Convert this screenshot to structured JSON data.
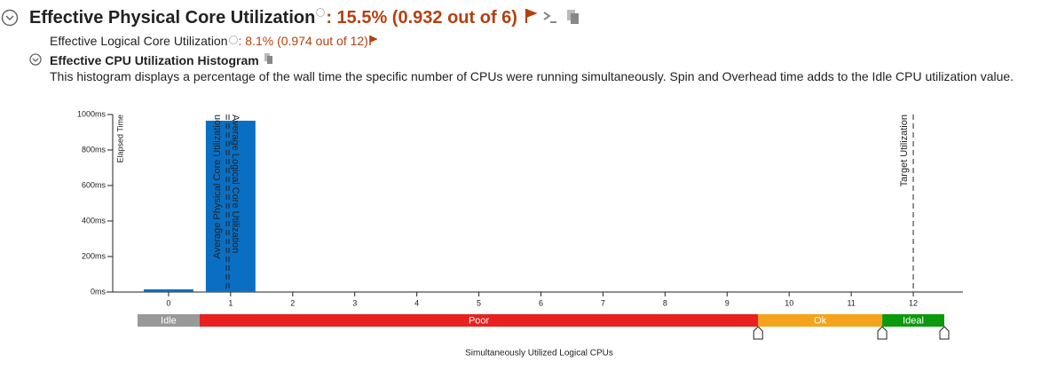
{
  "header": {
    "title": "Effective Physical Core Utilization",
    "title_value": ": 15.5% (0.932 out of 6)",
    "sub_label": "Effective Logical Core Utilization",
    "sub_value": ": 8.1% (0.974 out of 12)",
    "section_title": "Effective CPU Utilization Histogram",
    "description": "This histogram displays a percentage of the wall time the specific number of CPUs were running simultaneously. Spin and Overhead time adds to the Idle CPU utilization value."
  },
  "chart_data": {
    "type": "bar",
    "x_label": "Simultaneously Utilized Logical CPUs",
    "y_label": "Elapsed Time",
    "x": [
      0,
      1,
      2,
      3,
      4,
      5,
      6,
      7,
      8,
      9,
      10,
      11,
      12
    ],
    "values": [
      15,
      965,
      0,
      0,
      0,
      0,
      0,
      0,
      0,
      0,
      0,
      0,
      0
    ],
    "color": "#0a6fc2",
    "xlim": [
      -1,
      12.8
    ],
    "xticks": [
      0,
      1,
      2,
      3,
      4,
      5,
      6,
      7,
      8,
      9,
      10,
      11,
      12
    ],
    "ylim": [
      0,
      1000
    ],
    "yticks": [
      {
        "value": 0,
        "label": "0ms"
      },
      {
        "value": 200,
        "label": "200ms"
      },
      {
        "value": 400,
        "label": "400ms"
      },
      {
        "value": 600,
        "label": "600ms"
      },
      {
        "value": 800,
        "label": "800ms"
      },
      {
        "value": 1000,
        "label": "1000ms"
      }
    ],
    "markers": [
      {
        "label": "Average Physical Core Utilization",
        "value": 0.932
      },
      {
        "label": "Average Logical Core Utilization",
        "value": 0.974
      },
      {
        "label": "Target Utilization",
        "value": 12
      }
    ],
    "bands": [
      {
        "label": "Idle",
        "start": -0.5,
        "end": 0.5,
        "color": "#999999"
      },
      {
        "label": "Poor",
        "start": 0.5,
        "end": 9.5,
        "color": "#e8201e"
      },
      {
        "label": "Ok",
        "start": 9.5,
        "end": 11.5,
        "color": "#f5a31a"
      },
      {
        "label": "Ideal",
        "start": 11.5,
        "end": 12.5,
        "color": "#0a9a0a"
      }
    ]
  }
}
